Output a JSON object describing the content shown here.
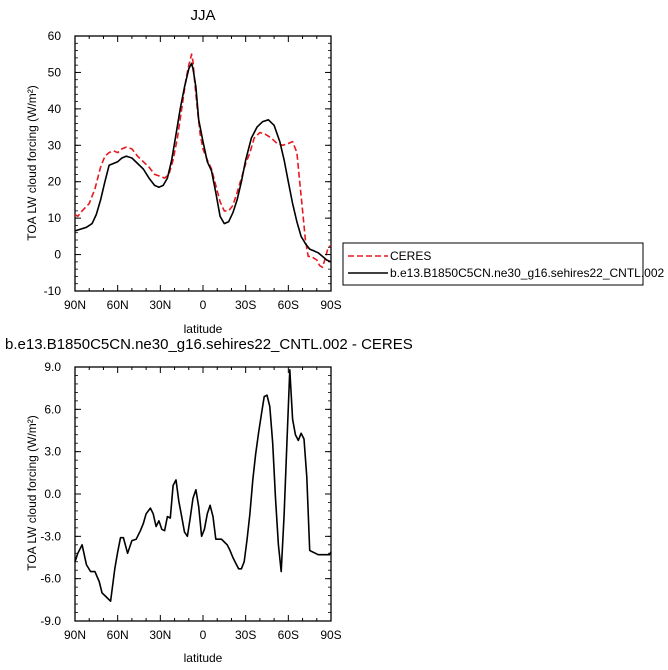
{
  "chart_data": [
    {
      "type": "line",
      "title": "JJA",
      "xlabel": "latitude",
      "ylabel": "TOA LW cloud forcing (W/m²)",
      "xlim": [
        -90,
        90
      ],
      "ylim": [
        -10,
        60
      ],
      "x_ticks": [
        -90,
        -60,
        -30,
        0,
        30,
        60,
        90
      ],
      "x_tick_labels": [
        "90N",
        "60N",
        "30N",
        "0",
        "30S",
        "60S",
        "90S"
      ],
      "y_ticks": [
        -10,
        0,
        10,
        20,
        30,
        40,
        50,
        60
      ],
      "y_tick_labels": [
        "-10",
        "0",
        "10",
        "20",
        "30",
        "40",
        "50",
        "60"
      ],
      "grid": false,
      "legend_position": "right",
      "series": [
        {
          "name": "CERES",
          "color": "#e8191e",
          "dash": "dashed",
          "x": [
            -90,
            -88,
            -85,
            -80,
            -76,
            -72,
            -69,
            -66,
            -63,
            -60,
            -57,
            -54,
            -50,
            -46,
            -42,
            -38,
            -34,
            -30,
            -27,
            -24,
            -21,
            -18,
            -15,
            -12,
            -10,
            -8,
            -7,
            -6,
            -4,
            -2,
            0,
            3,
            6,
            9,
            12,
            15,
            18,
            21,
            24,
            27,
            30,
            33,
            36,
            40,
            44,
            48,
            52,
            56,
            60,
            63,
            66,
            68,
            70,
            72,
            74,
            76,
            78,
            80,
            82,
            84,
            86,
            88,
            90
          ],
          "y": [
            11,
            10.5,
            12,
            14,
            18,
            24,
            27,
            28,
            28.5,
            28,
            29,
            29.5,
            29,
            27,
            25.5,
            24,
            22,
            21.5,
            21,
            22,
            26,
            32,
            40,
            48,
            52,
            55,
            53,
            48,
            40,
            33,
            29,
            26,
            23.5,
            19,
            14.5,
            12,
            12,
            13.5,
            17,
            21,
            25,
            28,
            32,
            33.5,
            33,
            32,
            30.5,
            30,
            30.5,
            31,
            28,
            20,
            12,
            4,
            -0.5,
            -0.5,
            -1,
            -1.5,
            -3,
            -3.5,
            -1,
            2,
            2.5
          ]
        },
        {
          "name": "b.e13.B1850C5CN.ne30_g16.sehires22_CNTL.002",
          "color": "#000000",
          "dash": "solid",
          "x": [
            -90,
            -86,
            -82,
            -78,
            -75,
            -72,
            -69,
            -66,
            -63,
            -60,
            -57,
            -54,
            -50,
            -46,
            -42,
            -38,
            -34,
            -31,
            -28,
            -25,
            -22,
            -19,
            -16,
            -13,
            -10,
            -8,
            -7,
            -5,
            -3,
            0,
            3,
            6,
            9,
            12,
            15,
            18,
            21,
            24,
            27,
            30,
            34,
            38,
            42,
            46,
            50,
            54,
            57,
            60,
            63,
            66,
            69,
            72,
            75,
            78,
            81,
            84,
            87,
            90
          ],
          "y": [
            6.5,
            7,
            7.5,
            8.5,
            11,
            15,
            20,
            24.5,
            25,
            25.5,
            26.5,
            27,
            26.5,
            25,
            23.5,
            21,
            19,
            18.5,
            19,
            21,
            26,
            33,
            40,
            46,
            51,
            52.5,
            51,
            46,
            37,
            31,
            25.5,
            23,
            17,
            10.5,
            8.5,
            9,
            11.5,
            15,
            20,
            26,
            32,
            35,
            36.5,
            37,
            35.5,
            31,
            26,
            20,
            14,
            9,
            5,
            3,
            1.5,
            1,
            0.5,
            -0.5,
            -1.5,
            -2
          ]
        }
      ]
    },
    {
      "type": "line",
      "title": "b.e13.B1850C5CN.ne30_g16.sehires22_CNTL.002 - CERES",
      "xlabel": "latitude",
      "ylabel": "TOA LW cloud forcing (W/m²)",
      "xlim": [
        -90,
        90
      ],
      "ylim": [
        -9,
        9
      ],
      "x_ticks": [
        -90,
        -60,
        -30,
        0,
        30,
        60,
        90
      ],
      "x_tick_labels": [
        "90N",
        "60N",
        "30N",
        "0",
        "30S",
        "60S",
        "90S"
      ],
      "y_ticks": [
        -9,
        -6,
        -3,
        0,
        3,
        6,
        9
      ],
      "y_tick_labels": [
        "-9.0",
        "-6.0",
        "-3.0",
        "0.0",
        "3.0",
        "6.0",
        "9.0"
      ],
      "grid": false,
      "series": [
        {
          "color": "#000000",
          "dash": "solid",
          "x": [
            -90,
            -88,
            -85,
            -82,
            -79,
            -76,
            -73,
            -71,
            -68,
            -65,
            -62,
            -60,
            -58,
            -56,
            -53,
            -50,
            -47,
            -44,
            -42,
            -40,
            -37,
            -35,
            -33,
            -31,
            -29,
            -27,
            -25,
            -23,
            -21,
            -19,
            -17,
            -15,
            -13,
            -11,
            -9,
            -7,
            -5,
            -3,
            -1,
            1,
            3,
            5,
            7,
            9,
            11,
            13,
            15,
            17,
            19,
            21,
            23,
            25,
            27,
            29,
            31,
            33,
            35,
            37,
            39,
            41,
            43,
            45,
            47,
            49,
            51,
            53,
            55,
            57,
            59,
            61,
            63,
            65,
            67,
            69,
            71,
            73,
            75,
            77,
            79,
            81,
            83,
            85,
            87,
            89,
            90
          ],
          "y": [
            -4.8,
            -4.2,
            -3.6,
            -5,
            -5.5,
            -5.5,
            -6.2,
            -7,
            -7.3,
            -7.6,
            -5.3,
            -4.1,
            -3.1,
            -3.1,
            -4.2,
            -3.3,
            -3.2,
            -2.6,
            -2.1,
            -1.4,
            -1,
            -1.4,
            -2.3,
            -1.9,
            -2.5,
            -2.6,
            -1.6,
            -1.7,
            0.6,
            1,
            -0.5,
            -1.6,
            -2.7,
            -3,
            -1.7,
            -0.3,
            0.3,
            -0.9,
            -3,
            -2.5,
            -1.4,
            -0.8,
            -1.6,
            -3.2,
            -3.2,
            -3.2,
            -3.4,
            -3.6,
            -4,
            -4.5,
            -4.9,
            -5.3,
            -5.3,
            -4.8,
            -3.2,
            -1.4,
            1,
            2.8,
            4.3,
            5.6,
            6.9,
            7,
            6.2,
            3.6,
            -0.3,
            -3.6,
            -5.5,
            -1.5,
            3.6,
            8.8,
            5.3,
            4.2,
            3.8,
            4.3,
            3.9,
            1.2,
            -4,
            -4.1,
            -4.2,
            -4.3,
            -4.3,
            -4.3,
            -4.3,
            -4.3,
            -4.1
          ]
        }
      ]
    }
  ]
}
